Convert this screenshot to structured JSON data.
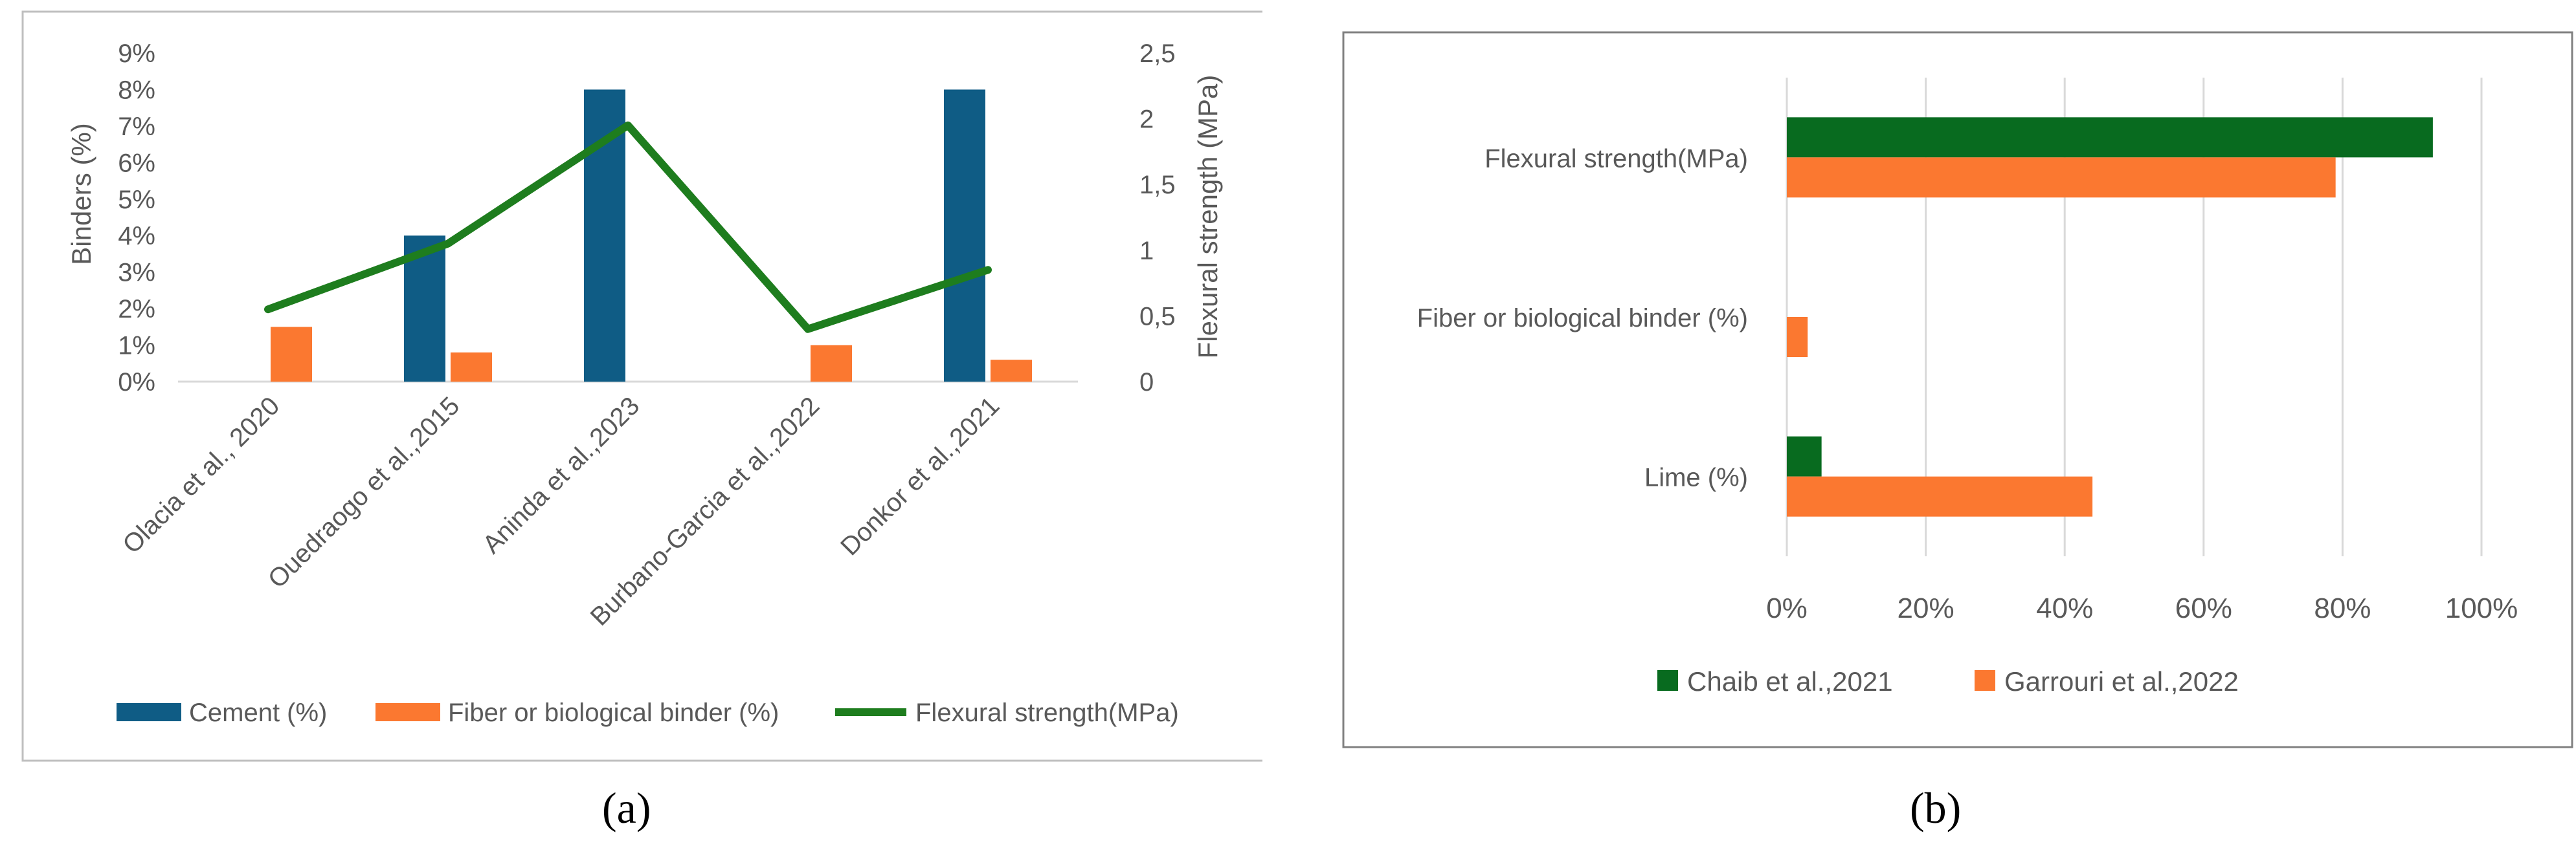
{
  "colors": {
    "cement": "#0f5c85",
    "fiber": "#fb7830",
    "flexural_line": "#1e7d1e",
    "chaib": "#086b1f",
    "garrouri": "#fb7830",
    "text": "#595959",
    "grid": "#d9d9d9",
    "frame": "#bfbfbf"
  },
  "panel_labels": {
    "a": "(a)",
    "b": "(b)"
  },
  "chart_data": [
    {
      "type": "bar",
      "title": "",
      "categories": [
        "Olacia et al., 2020",
        "Ouedraogo et al.,2015",
        "Aninda et al.,2023",
        "Burbano-Garcia et al.,2022",
        "Donkor et al.,2021"
      ],
      "series": [
        {
          "name": "Cement (%)",
          "values": [
            0,
            4,
            8,
            0,
            8
          ]
        },
        {
          "name": "Fiber or biological binder (%)",
          "values": [
            1.5,
            0.8,
            0,
            1.0,
            0.6
          ]
        },
        {
          "name": "Flexural strength(MPa)",
          "type": "line",
          "axis": "secondary",
          "values": [
            0.55,
            1.05,
            1.95,
            0.4,
            0.85
          ]
        }
      ],
      "ylabel": "Binders (%)",
      "ylim": [
        0,
        9
      ],
      "yticks": [
        "0%",
        "1%",
        "2%",
        "3%",
        "4%",
        "5%",
        "6%",
        "7%",
        "8%",
        "9%"
      ],
      "y2label": "Flexural strength (MPa)",
      "y2lim": [
        0,
        2.5
      ],
      "y2ticks": [
        "0",
        "0,5",
        "1",
        "1,5",
        "2",
        "2,5"
      ],
      "grid": false,
      "legend": "bottom"
    },
    {
      "type": "bar",
      "orientation": "horizontal",
      "title": "",
      "categories": [
        "Flexural strength(MPa)",
        "Fiber or biological binder (%)",
        "Lime (%)"
      ],
      "series": [
        {
          "name": "Chaib et al.,2021",
          "values": [
            93,
            0,
            5
          ]
        },
        {
          "name": "Garrouri et al.,2022",
          "values": [
            79,
            3,
            44
          ]
        }
      ],
      "xlim": [
        0,
        100
      ],
      "xticks": [
        "0%",
        "20%",
        "40%",
        "60%",
        "80%",
        "100%"
      ],
      "grid": true,
      "legend": "bottom"
    }
  ]
}
